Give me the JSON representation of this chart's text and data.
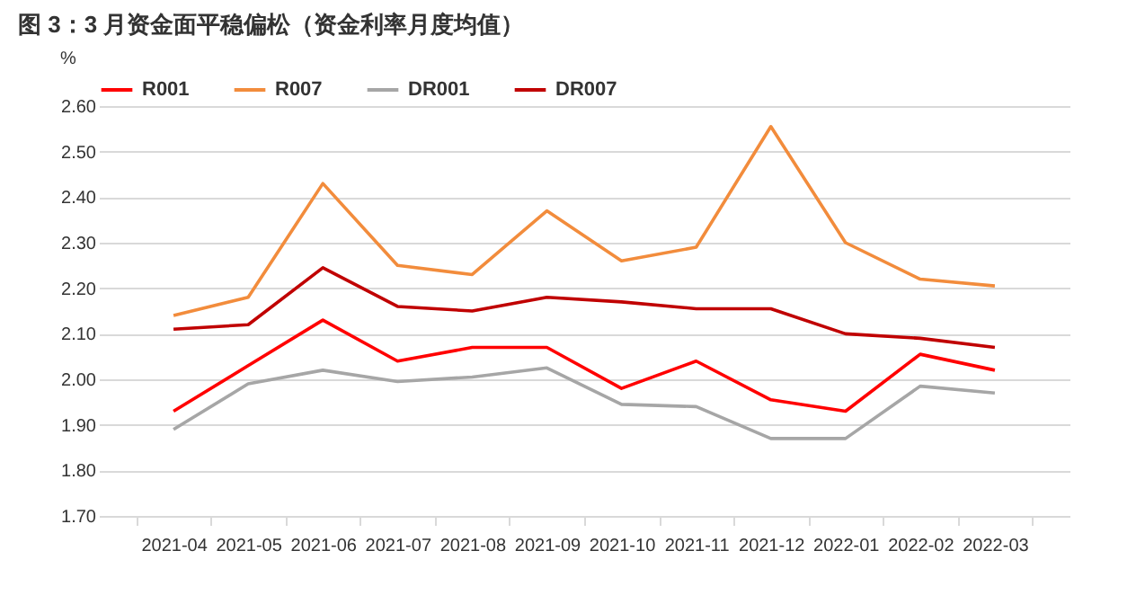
{
  "chart_data": {
    "type": "line",
    "title": "图 3：3 月资金面平稳偏松（资金利率月度均值）",
    "ylabel": "%",
    "categories": [
      "2021-04",
      "2021-05",
      "2021-06",
      "2021-07",
      "2021-08",
      "2021-09",
      "2021-10",
      "2021-11",
      "2021-12",
      "2022-01",
      "2022-02",
      "2022-03"
    ],
    "series": [
      {
        "name": "R001",
        "color": "#ff0000",
        "values": [
          1.93,
          2.03,
          2.13,
          2.04,
          2.07,
          2.07,
          1.98,
          2.04,
          1.955,
          1.93,
          2.055,
          2.02
        ]
      },
      {
        "name": "R007",
        "color": "#f28c3c",
        "values": [
          2.14,
          2.18,
          2.43,
          2.25,
          2.23,
          2.37,
          2.26,
          2.29,
          2.555,
          2.3,
          2.22,
          2.205
        ]
      },
      {
        "name": "DR001",
        "color": "#a6a6a6",
        "values": [
          1.89,
          1.99,
          2.02,
          1.995,
          2.005,
          2.025,
          1.945,
          1.94,
          1.87,
          1.87,
          1.985,
          1.97
        ]
      },
      {
        "name": "DR007",
        "color": "#c00000",
        "values": [
          2.11,
          2.12,
          2.245,
          2.16,
          2.15,
          2.18,
          2.17,
          2.155,
          2.155,
          2.1,
          2.09,
          2.07
        ]
      }
    ],
    "ylim": [
      1.7,
      2.6
    ],
    "yticks": [
      {
        "value": 1.7,
        "label": "1.70"
      },
      {
        "value": 1.8,
        "label": "1.80"
      },
      {
        "value": 1.9,
        "label": "1.90"
      },
      {
        "value": 2.0,
        "label": "2.00"
      },
      {
        "value": 2.1,
        "label": "2.10"
      },
      {
        "value": 2.2,
        "label": "2.20"
      },
      {
        "value": 2.3,
        "label": "2.30"
      },
      {
        "value": 2.4,
        "label": "2.40"
      },
      {
        "value": 2.5,
        "label": "2.50"
      },
      {
        "value": 2.6,
        "label": "2.60"
      }
    ],
    "grid": "y",
    "legend": "top",
    "marker": "none",
    "line_style": "solid"
  }
}
